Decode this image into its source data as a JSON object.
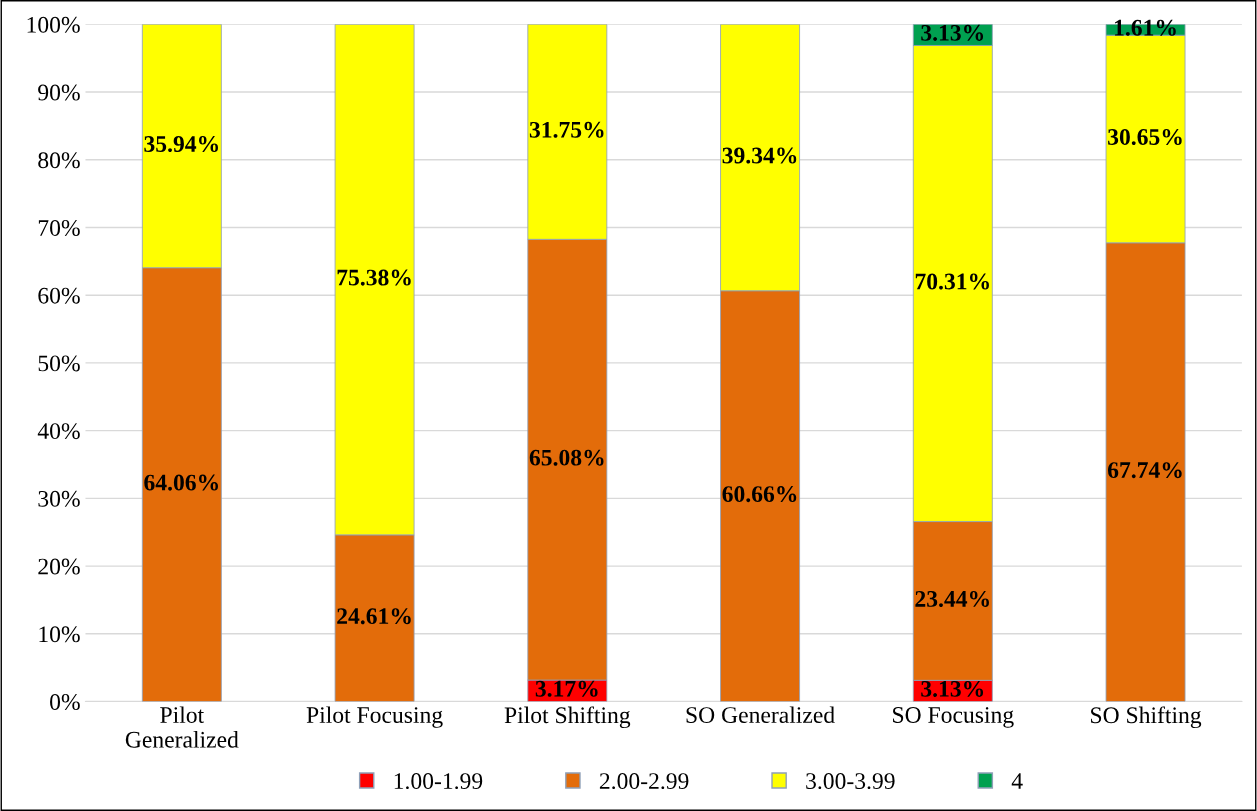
{
  "chart_data": {
    "type": "bar",
    "stacked": true,
    "categories": [
      "Pilot\nGeneralized",
      "Pilot Focusing",
      "Pilot Shifting",
      "SO Generalized",
      "SO Focusing",
      "SO Shifting"
    ],
    "series": [
      {
        "name": "1.00-1.99",
        "color": "#ff0000",
        "values": [
          0,
          0,
          3.17,
          0,
          3.13,
          0
        ],
        "value_labels": [
          null,
          null,
          "3.17%",
          null,
          "3.13%",
          null
        ]
      },
      {
        "name": "2.00-2.99",
        "color": "#e36c0a",
        "values": [
          64.06,
          24.61,
          65.08,
          60.66,
          23.44,
          67.74
        ],
        "value_labels": [
          "64.06%",
          "24.61%",
          "65.08%",
          "60.66%",
          "23.44%",
          "67.74%"
        ]
      },
      {
        "name": "3.00-3.99",
        "color": "#ffff00",
        "values": [
          35.94,
          75.38,
          31.75,
          39.34,
          70.31,
          30.65
        ],
        "value_labels": [
          "35.94%",
          "75.38%",
          "31.75%",
          "39.34%",
          "70.31%",
          "30.65%"
        ]
      },
      {
        "name": "4",
        "color": "#00a050",
        "values": [
          0,
          0,
          0,
          0,
          3.13,
          1.61
        ],
        "value_labels": [
          null,
          null,
          null,
          null,
          "3.13%",
          "1.61%"
        ]
      }
    ],
    "ylim": [
      0,
      100
    ],
    "yticks": [
      {
        "value": 0,
        "label": "0%"
      },
      {
        "value": 10,
        "label": "10%"
      },
      {
        "value": 20,
        "label": "20%"
      },
      {
        "value": 30,
        "label": "30%"
      },
      {
        "value": 40,
        "label": "40%"
      },
      {
        "value": 50,
        "label": "50%"
      },
      {
        "value": 60,
        "label": "60%"
      },
      {
        "value": 70,
        "label": "70%"
      },
      {
        "value": 80,
        "label": "80%"
      },
      {
        "value": 90,
        "label": "90%"
      },
      {
        "value": 100,
        "label": "100%"
      }
    ],
    "grid": "y",
    "legend": "bottom"
  }
}
